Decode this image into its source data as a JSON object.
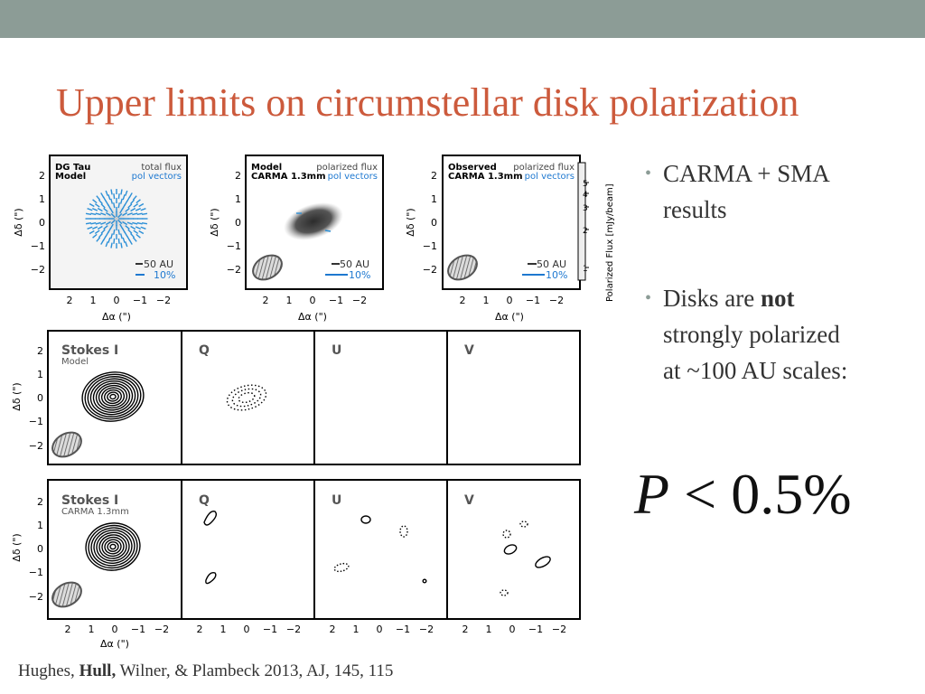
{
  "slide": {
    "title": "Upper limits on circumstellar disk polarization",
    "bullets": [
      {
        "before": "CARMA + SMA",
        "line2": "results"
      },
      {
        "before": "Disks are ",
        "bold": "not",
        "line2": "strongly polarized",
        "line3": "at ~100 AU scales:"
      }
    ],
    "formula": {
      "var": "P",
      "rest": " < 0.5%"
    },
    "citation": {
      "pre": "Hughes, ",
      "bold": "Hull,",
      "post": " Wilner, & Plambeck 2013, AJ, 145, 115"
    }
  },
  "figure": {
    "axis_x_label": "Δα (\")",
    "axis_y_label": "Δδ (\")",
    "x_ticks": [
      "2",
      "1",
      "0",
      "−1",
      "−2"
    ],
    "y_ticks": [
      "2",
      "1",
      "0",
      "−1",
      "−2"
    ],
    "top_panels": [
      {
        "label_left_1": "DG Tau",
        "label_left_2": "Model",
        "label_right_1": "total flux",
        "label_right_2": "pol vectors",
        "scale_au": "50 AU",
        "scale_pct": "10%"
      },
      {
        "label_left_1": "Model",
        "label_left_2": "CARMA 1.3mm",
        "label_right_1": "polarized flux",
        "label_right_2": "pol vectors",
        "scale_au": "50 AU",
        "scale_pct": "10%"
      },
      {
        "label_left_1": "Observed",
        "label_left_2": "CARMA 1.3mm",
        "label_right_1": "polarized flux",
        "label_right_2": "pol vectors",
        "scale_au": "50 AU",
        "scale_pct": "10%"
      }
    ],
    "colorbar_label": "Polarized Flux [mJy/beam]",
    "colorbar_ticks": [
      "5",
      "4",
      "3",
      "2",
      "1"
    ],
    "row_model": [
      {
        "label": "Stokes I",
        "sub": "Model"
      },
      {
        "label": "Q"
      },
      {
        "label": "U"
      },
      {
        "label": "V"
      }
    ],
    "row_obs": [
      {
        "label": "Stokes I",
        "sub": "CARMA 1.3mm"
      },
      {
        "label": "Q"
      },
      {
        "label": "U"
      },
      {
        "label": "V"
      }
    ],
    "colors": {
      "vector_blue": "#2b8fd6",
      "label_blue": "#1e78d0",
      "title_red": "#cc5a3c"
    }
  }
}
